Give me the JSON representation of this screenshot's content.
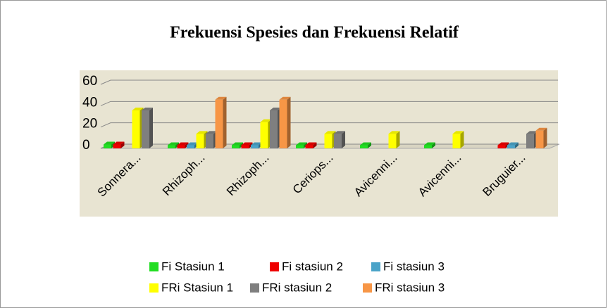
{
  "chart_data": {
    "type": "bar3d",
    "title": "Frekuensi Spesies dan Frekuensi Relatif",
    "categories": [
      "Sonnera...",
      "Rhizoph...",
      "Rhizoph...",
      "Ceriops...",
      "Avicenni...",
      "Avicenni...",
      "Bruguier..."
    ],
    "series": [
      {
        "name": "Fi Stasiun 1",
        "color": "#22dd22",
        "values": [
          1,
          0.33,
          0.33,
          0.33,
          0.33,
          0.33,
          null
        ]
      },
      {
        "name": "Fi stasiun 2",
        "color": "#ee0000",
        "values": [
          1,
          0.33,
          0.33,
          0.33,
          null,
          null,
          0.33
        ]
      },
      {
        "name": "Fi stasiun 3",
        "color": "#4aa3c8",
        "values": [
          null,
          0.33,
          0.33,
          null,
          null,
          null,
          0.33
        ]
      },
      {
        "name": "FRi Stasiun 1",
        "color": "#ffff00",
        "values": [
          33,
          11,
          22,
          11,
          11,
          11,
          null
        ]
      },
      {
        "name": "FRi stasiun 2",
        "color": "#7f7f7f",
        "values": [
          33,
          11,
          33,
          11,
          null,
          null,
          11
        ]
      },
      {
        "name": "FRi stasiun 3",
        "color": "#f79646",
        "values": [
          null,
          43,
          43,
          null,
          null,
          null,
          14
        ]
      }
    ],
    "ylim": [
      0,
      60
    ],
    "yticks": [
      0,
      20,
      40,
      60
    ],
    "grid": true
  }
}
